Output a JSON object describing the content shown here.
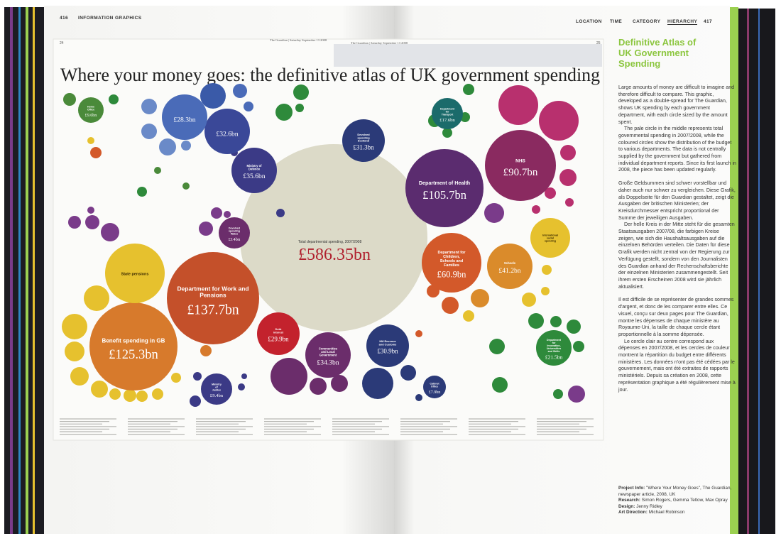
{
  "header": {
    "left_page_number": "416",
    "left_section": "INFORMATION GRAPHICS",
    "nav": [
      "LOCATION",
      "TIME",
      "CATEGORY",
      "HIERARCHY"
    ],
    "right_page_number": "417"
  },
  "spread": {
    "page_left": "24",
    "page_right": "25",
    "masthead_left": "The Guardian | Saturday September 13 2008",
    "masthead_right": "The Guardian | Saturday September 13 2008",
    "title": "Where your money goes: the definitive atlas of UK government spending",
    "total_label": "Total departmental spending, 2007/2008",
    "total": "£586.35bn",
    "departments": [
      {
        "name": "Department for Work and Pensions",
        "amount": "£137.7bn"
      },
      {
        "name": "Benefit spending in GB",
        "amount": "£125.3bn"
      },
      {
        "name": "State pensions"
      },
      {
        "name": "Department of Health",
        "amount": "£105.7bn"
      },
      {
        "name": "NHS",
        "amount": "£90.7bn"
      },
      {
        "name": "Department for Children, Schools and Families",
        "amount": "£60.9bn"
      },
      {
        "name": "Schools",
        "amount": "£41.2bn"
      },
      {
        "name": "Ministry of Defence",
        "amount": "£35.6bn"
      },
      {
        "name": "Communities and Local Government",
        "amount": "£34.3bn"
      },
      {
        "name": "Devolved spending Scotland",
        "amount": "£31.3bn"
      },
      {
        "name": "HM Revenue and Customs",
        "amount": "£30.9bn"
      },
      {
        "name": "Debt interest",
        "amount": "£29.9bn"
      },
      {
        "amount": "£32.6bn"
      },
      {
        "amount": "£28.3bn"
      },
      {
        "name": "Department for Innovation, Universities and Skills",
        "amount": "£21.5bn"
      },
      {
        "name": "Department for Transport",
        "amount": "£17.6bn"
      },
      {
        "name": "Devolved spending Wales",
        "amount": "£14bn"
      },
      {
        "name": "Ministry of Justice",
        "amount": "£9.4bn"
      },
      {
        "name": "Home Office",
        "amount": "£9.6bn"
      },
      {
        "name": "Cabinet Office",
        "amount": "£7.9bn"
      },
      {
        "name": "International social spending"
      }
    ]
  },
  "sidebar": {
    "title": "Definitive Atlas of UK Government Spending",
    "paragraphs": [
      "Large amounts of money are difficult to imagine and therefore difficult to compare. This graphic, developed as a double-spread for The Guardian, shows UK spending by each government department, with each circle sized by the amount spent.",
      "The pale circle in the middle represents total governmental spending in 2007/2008, while the coloured circles show the distribution of the budget to various departments. The data is not centrally supplied by the government but gathered from individual department reports. Since its first launch in 2008, the piece has been updated regularly.",
      "Große Geldsummen sind schwer vorstellbar und daher auch nur schwer zu vergleichen. Diese Grafik, als Doppelseite für den Guardian gestaltet, zeigt die Ausgaben der britischen Ministerien; der Kreisdurchmesser entspricht proportional der Summe der jeweiligen Ausgaben.",
      "Der helle Kreis in der Mitte steht für die gesamten Staatsausgaben 2007/08, die farbigen Kreise zeigen, wie sich die Haushaltsausgaben auf die einzelnen Behörden verteilen. Die Daten für diese Grafik werden nicht zentral von der Regierung zur Verfügung gestellt, sondern von den Journalisten des Guardian anhand der Rechenschaftsberichte der einzelnen Ministerien zusammengestellt. Seit ihrem ersten Erscheinen 2008 wird sie jährlich aktualisiert.",
      "Il est difficile de se représenter de grandes sommes d'argent, et donc de les comparer entre elles. Ce visuel, conçu sur deux pages pour The Guardian, montre les dépenses de chaque ministère au Royaume-Uni, la taille de chaque cercle étant proportionnelle à la somme dépensée.",
      "Le cercle clair au centre correspond aux dépenses en 2007/2008, et les cercles de couleur montrent la répartition du budget entre différents ministères. Les données n'ont pas été cédées par le gouvernement, mais ont été extraites de rapports ministériels. Depuis sa création en 2008, cette représentation graphique a été régulièrement mise à jour."
    ],
    "credits": [
      {
        "label": "Project Info:",
        "text": "\"Where Your Money Goes\", The Guardian, newspaper article, 2008, UK"
      },
      {
        "label": "Research:",
        "text": "Simon Rogers, Gemma Tetlow, Max Opray"
      },
      {
        "label": "Design:",
        "text": "Jenny Ridley"
      },
      {
        "label": "Art Direction:",
        "text": "Michael Robinson"
      }
    ]
  }
}
